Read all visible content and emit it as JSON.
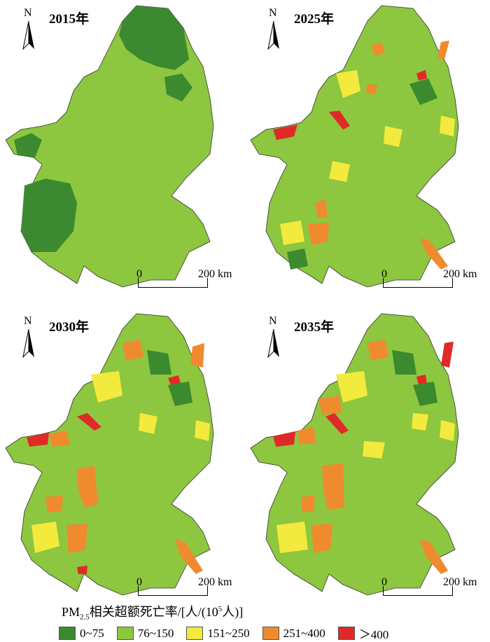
{
  "panels": [
    {
      "year_label": "2015年",
      "north": "N",
      "scale_start": "0",
      "scale_end": "200 km"
    },
    {
      "year_label": "2025年",
      "north": "N",
      "scale_start": "0",
      "scale_end": "200 km"
    },
    {
      "year_label": "2030年",
      "north": "N",
      "scale_start": "0",
      "scale_end": "200 km"
    },
    {
      "year_label": "2035年",
      "north": "N",
      "scale_start": "0",
      "scale_end": "200 km"
    }
  ],
  "legend": {
    "title_prefix": "PM",
    "title_sub": "2.5",
    "title_mid": "相关超额死亡率/[人/(10",
    "title_sup": "5",
    "title_suffix": "人)]",
    "items": [
      {
        "label": "0~75",
        "color": "#3b8a2f"
      },
      {
        "label": "76~150",
        "color": "#8dc63f"
      },
      {
        "label": "151~250",
        "color": "#f2ea3c"
      },
      {
        "label": "251~400",
        "color": "#f08a2e"
      },
      {
        "label": "＞400",
        "color": "#e02a27"
      }
    ]
  }
}
